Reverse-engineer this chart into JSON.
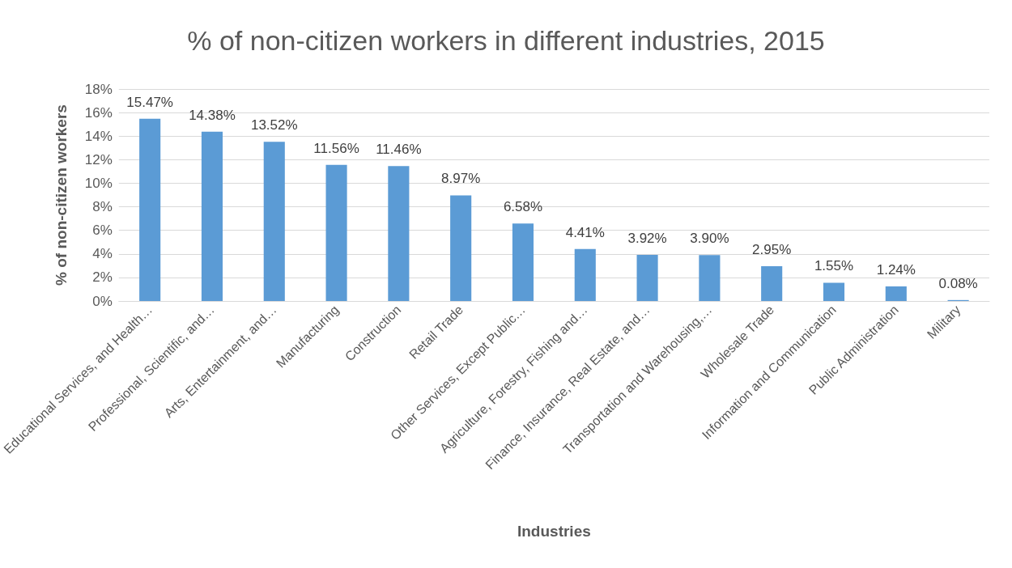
{
  "chart_data": {
    "type": "bar",
    "title": "% of non-citizen workers in different industries, 2015",
    "xlabel": "Industries",
    "ylabel": "% of non-citizen workers",
    "categories": [
      "Educational Services, and Health…",
      "Professional, Scientific, and…",
      "Arts, Entertainment, and…",
      "Manufacturing",
      "Construction",
      "Retail Trade",
      "Other Services, Except Public…",
      "Agriculture, Forestry, Fishing and…",
      "Finance, Insurance, Real Estate, and…",
      "Transportation and Warehousing,…",
      "Wholesale Trade",
      "Information and Communication",
      "Public Administration",
      "Military"
    ],
    "values": [
      15.47,
      14.38,
      13.52,
      11.56,
      11.46,
      8.97,
      6.58,
      4.41,
      3.92,
      3.9,
      2.95,
      1.55,
      1.24,
      0.08
    ],
    "value_labels": [
      "15.47%",
      "14.38%",
      "13.52%",
      "11.56%",
      "11.46%",
      "8.97%",
      "6.58%",
      "4.41%",
      "3.92%",
      "3.90%",
      "2.95%",
      "1.55%",
      "1.24%",
      "0.08%"
    ],
    "color": "#5b9bd5",
    "ylim": [
      0,
      18
    ],
    "yticks": [
      {
        "value": 0,
        "label": "0%"
      },
      {
        "value": 2,
        "label": "2%"
      },
      {
        "value": 4,
        "label": "4%"
      },
      {
        "value": 6,
        "label": "6%"
      },
      {
        "value": 8,
        "label": "8%"
      },
      {
        "value": 10,
        "label": "10%"
      },
      {
        "value": 12,
        "label": "12%"
      },
      {
        "value": 14,
        "label": "14%"
      },
      {
        "value": 16,
        "label": "16%"
      },
      {
        "value": 18,
        "label": "18%"
      }
    ],
    "grid": "y"
  }
}
